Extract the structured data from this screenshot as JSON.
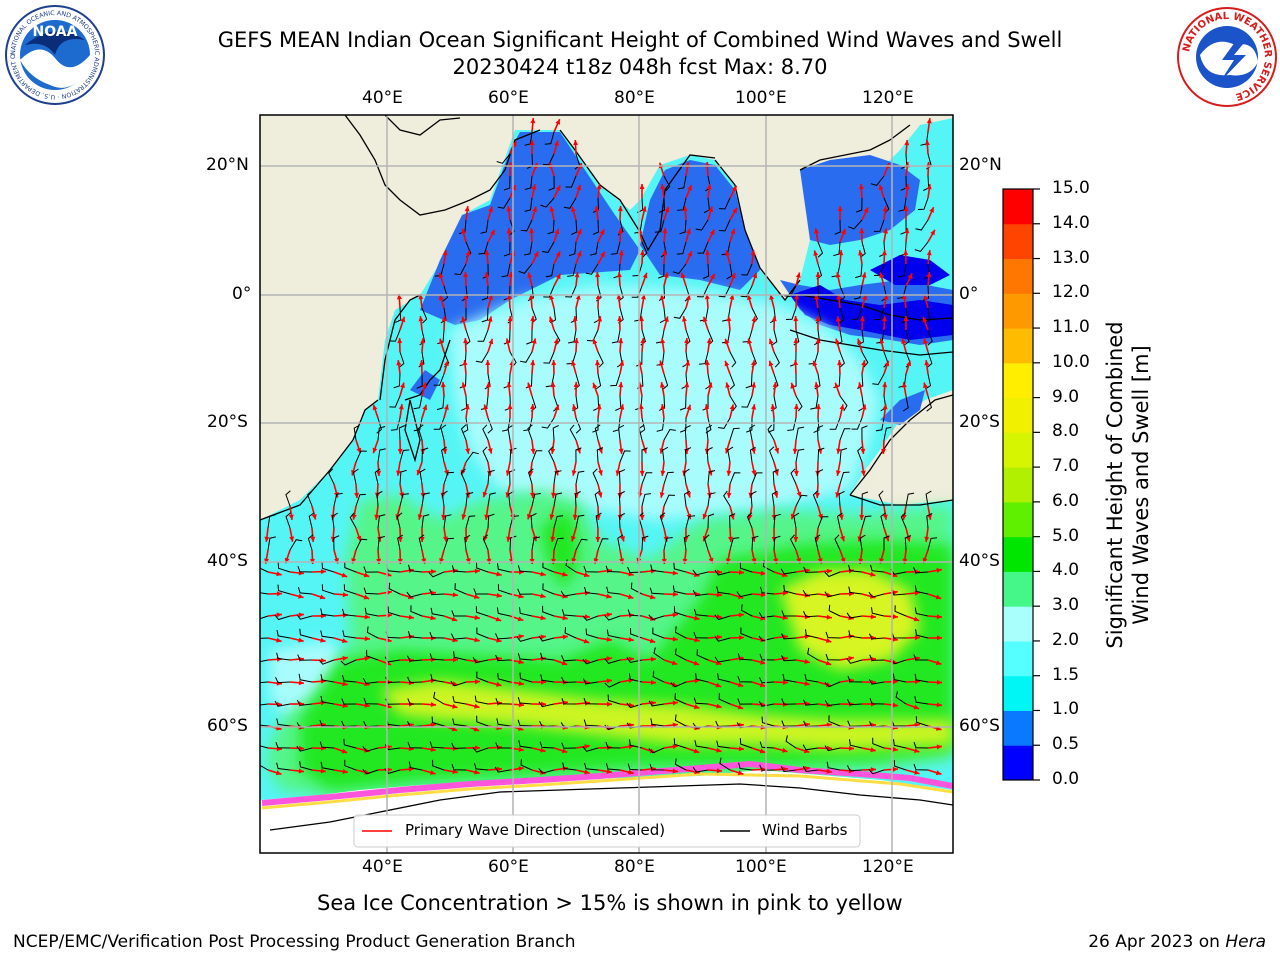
{
  "header": {
    "title_line1": "GEFS MEAN Indian Ocean Significant Height of Combined Wind Waves and Swell",
    "title_line2": "20230424 t18z 048h fcst   Max: 8.70"
  },
  "logos": {
    "left": {
      "text": "NOAA",
      "ring_text": "NATIONAL OCEANIC AND ATMOSPHERIC ADMINISTRATION · U.S. DEPARTMENT OF COMMERCE"
    },
    "right": {
      "ring_text": "NATIONAL WEATHER SERVICE"
    }
  },
  "map": {
    "lon_ticks": [
      "40°E",
      "60°E",
      "80°E",
      "100°E",
      "120°E"
    ],
    "lat_ticks": [
      "20°N",
      "0°",
      "20°S",
      "40°S",
      "60°S"
    ],
    "legend": {
      "wave_label": "Primary Wave Direction (unscaled)",
      "barb_label": "Wind Barbs",
      "wave_color": "#ff0000",
      "barb_color": "#000000"
    },
    "ocean_colors": {
      "deep_blue": "#2a6cf0",
      "cyan": "#4ff0f0",
      "light_cyan": "#a0fcfc",
      "mint": "#55f58a",
      "green": "#22e822",
      "yellow_green": "#ccf520",
      "land": "#efeddc",
      "ice": "#ffffff"
    }
  },
  "colorbar": {
    "label": "Significant Height of Combined\nWind Waves and Swell [m]",
    "label_line1": "Significant Height of Combined",
    "label_line2": "Wind Waves and Swell [m]",
    "ticks": [
      "0.0",
      "0.5",
      "1.0",
      "1.5",
      "2.0",
      "3.0",
      "4.0",
      "5.0",
      "6.0",
      "7.0",
      "8.0",
      "9.0",
      "10.0",
      "11.0",
      "12.0",
      "13.0",
      "14.0",
      "15.0"
    ],
    "colors": [
      "#0000ff",
      "#0a78ff",
      "#00f5f5",
      "#55ffff",
      "#a8fffc",
      "#44f788",
      "#00e600",
      "#5ff000",
      "#b0f000",
      "#d6f500",
      "#f0f000",
      "#ffee00",
      "#ffbb00",
      "#ff9900",
      "#ff7700",
      "#ff4400",
      "#ff0000"
    ]
  },
  "caption": "Sea Ice Concentration > 15% is shown in pink to yellow",
  "footer": {
    "left": "NCEP/EMC/Verification Post Processing Product Generation Branch",
    "date": "26 Apr 2023 on ",
    "machine": "Hera"
  }
}
